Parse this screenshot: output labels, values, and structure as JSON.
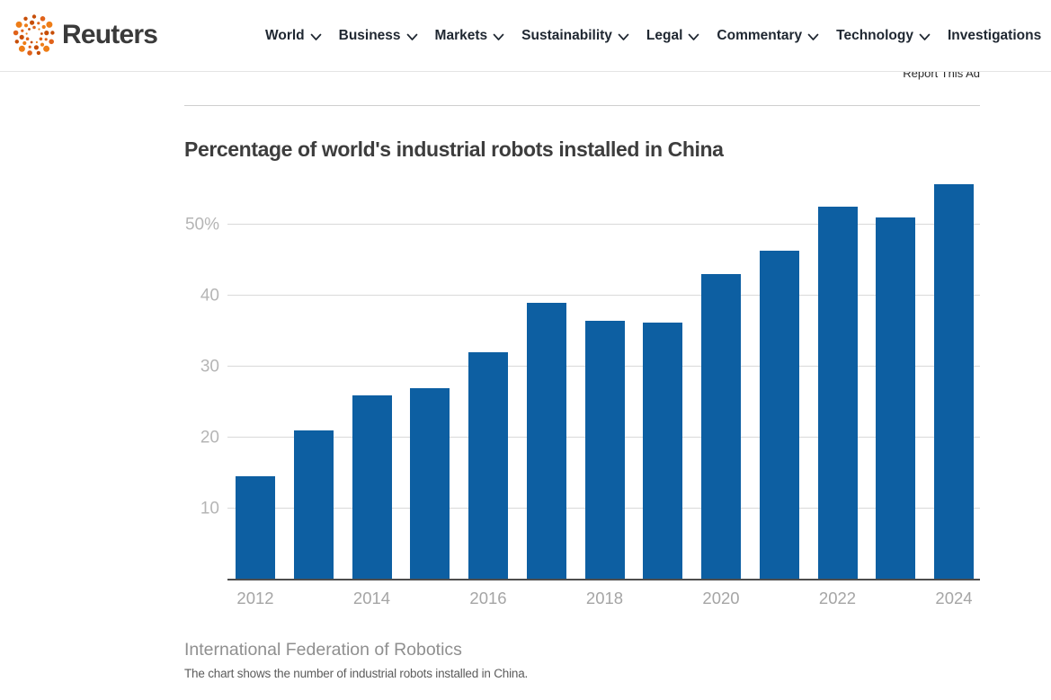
{
  "nav": {
    "brand": "Reuters",
    "items": [
      {
        "label": "World",
        "has_chevron": true
      },
      {
        "label": "Business",
        "has_chevron": true
      },
      {
        "label": "Markets",
        "has_chevron": true
      },
      {
        "label": "Sustainability",
        "has_chevron": true
      },
      {
        "label": "Legal",
        "has_chevron": true
      },
      {
        "label": "Commentary",
        "has_chevron": true
      },
      {
        "label": "Technology",
        "has_chevron": true
      },
      {
        "label": "Investigations",
        "has_chevron": false
      }
    ]
  },
  "ad": {
    "report_label": "Report This Ad"
  },
  "chart": {
    "title": "Percentage of world's industrial robots installed in China",
    "source": "International Federation of Robotics",
    "caption": "The chart shows the number of industrial robots installed in China."
  },
  "chart_data": {
    "type": "bar",
    "title": "Percentage of world's industrial robots installed in China",
    "categories": [
      "2012",
      "2013",
      "2014",
      "2015",
      "2016",
      "2017",
      "2018",
      "2019",
      "2020",
      "2021",
      "2022",
      "2023",
      "2024"
    ],
    "values": [
      14.5,
      21,
      26,
      27,
      32,
      39,
      36.4,
      36.2,
      43,
      46.3,
      52.5,
      51,
      55.7
    ],
    "x_tick_labels": [
      "2012",
      "2014",
      "2016",
      "2018",
      "2020",
      "2022",
      "2024"
    ],
    "y_ticks": [
      {
        "value": 10,
        "label": "10"
      },
      {
        "value": 20,
        "label": "20"
      },
      {
        "value": 30,
        "label": "30"
      },
      {
        "value": 40,
        "label": "40"
      },
      {
        "value": 50,
        "label": "50%"
      }
    ],
    "ylim": [
      0,
      57.2
    ],
    "xlabel": "",
    "ylabel": "",
    "grid": true,
    "legend": false,
    "bar_color": "#0d5fa2"
  },
  "colors": {
    "bar_blue": "#0d5fa2",
    "logo_orange": "#e0621a",
    "gridline": "#d9d9d9",
    "axis_line": "#4d4d4d"
  }
}
